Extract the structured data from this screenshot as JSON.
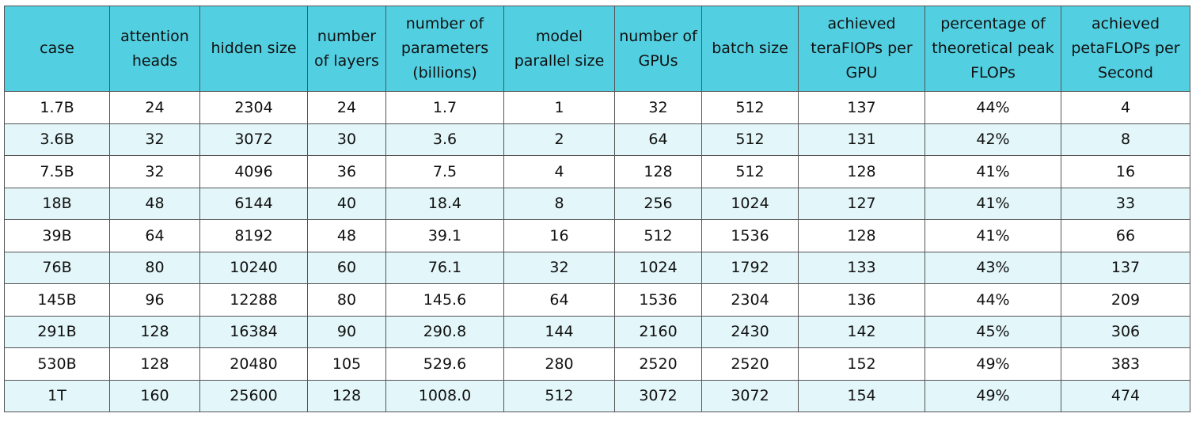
{
  "table": {
    "header": [
      "case",
      "attention heads",
      "hidden size",
      "number of layers",
      "number of parameters (billions)",
      "model parallel size",
      "number of GPUs",
      "batch size",
      "achieved teraFlOPs per GPU",
      "percentage of theoretical peak FLOPs",
      "achieved petaFLOPs per Second"
    ],
    "rows": [
      [
        "1.7B",
        "24",
        "2304",
        "24",
        "1.7",
        "1",
        "32",
        "512",
        "137",
        "44%",
        "4"
      ],
      [
        "3.6B",
        "32",
        "3072",
        "30",
        "3.6",
        "2",
        "64",
        "512",
        "131",
        "42%",
        "8"
      ],
      [
        "7.5B",
        "32",
        "4096",
        "36",
        "7.5",
        "4",
        "128",
        "512",
        "128",
        "41%",
        "16"
      ],
      [
        "18B",
        "48",
        "6144",
        "40",
        "18.4",
        "8",
        "256",
        "1024",
        "127",
        "41%",
        "33"
      ],
      [
        "39B",
        "64",
        "8192",
        "48",
        "39.1",
        "16",
        "512",
        "1536",
        "128",
        "41%",
        "66"
      ],
      [
        "76B",
        "80",
        "10240",
        "60",
        "76.1",
        "32",
        "1024",
        "1792",
        "133",
        "43%",
        "137"
      ],
      [
        "145B",
        "96",
        "12288",
        "80",
        "145.6",
        "64",
        "1536",
        "2304",
        "136",
        "44%",
        "209"
      ],
      [
        "291B",
        "128",
        "16384",
        "90",
        "290.8",
        "144",
        "2160",
        "2430",
        "142",
        "45%",
        "306"
      ],
      [
        "530B",
        "128",
        "20480",
        "105",
        "529.6",
        "280",
        "2520",
        "2520",
        "152",
        "49%",
        "383"
      ],
      [
        "1T",
        "160",
        "25600",
        "128",
        "1008.0",
        "512",
        "3072",
        "3072",
        "154",
        "49%",
        "474"
      ]
    ]
  }
}
